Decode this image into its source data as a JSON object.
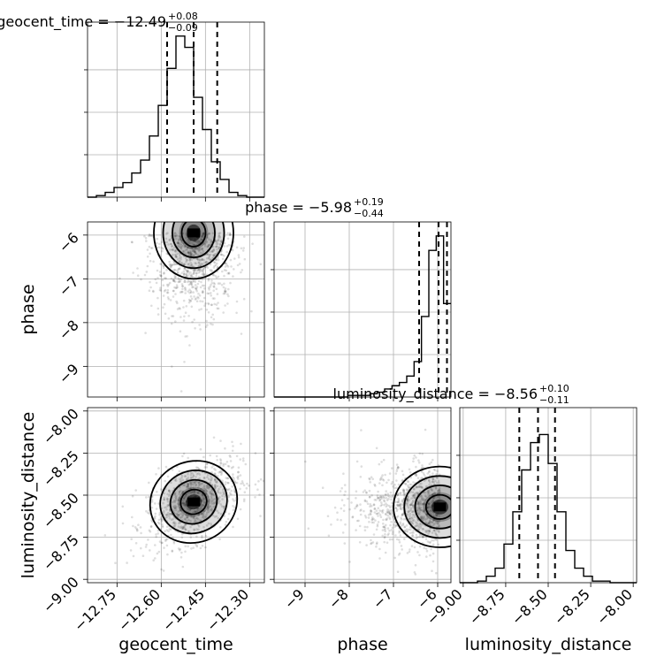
{
  "chart_data": {
    "type": "corner",
    "parameters": [
      "geocent_time",
      "phase",
      "luminosity_distance"
    ],
    "titles": [
      {
        "name": "geocent_time",
        "median": "−12.49",
        "plus": "+0.08",
        "minus": "−0.09"
      },
      {
        "name": "phase",
        "median": "−5.98",
        "plus": "+0.19",
        "minus": "−0.44"
      },
      {
        "name": "luminosity_distance",
        "median": "−8.56",
        "plus": "+0.10",
        "minus": "−0.11"
      }
    ],
    "axes": {
      "geocent_time": {
        "range": [
          -12.85,
          -12.25
        ],
        "ticks": [
          -12.75,
          -12.6,
          -12.45,
          -12.3
        ],
        "tick_labels": [
          "−12.75",
          "−12.60",
          "−12.45",
          "−12.30"
        ]
      },
      "phase": {
        "range": [
          -9.7,
          -5.7
        ],
        "ticks": [
          -9,
          -8,
          -7,
          -6
        ],
        "tick_labels": [
          "−9",
          "−8",
          "−7",
          "−6"
        ]
      },
      "luminosity_distance": {
        "range": [
          -9.02,
          -7.98
        ],
        "ticks": [
          -9.0,
          -8.75,
          -8.5,
          -8.25,
          -8.0
        ],
        "tick_labels": [
          "−9.00",
          "−8.75",
          "−8.50",
          "−8.25",
          "−8.00"
        ]
      }
    },
    "quantiles": {
      "geocent_time": [
        -12.58,
        -12.49,
        -12.41
      ],
      "phase": [
        -6.42,
        -5.98,
        -5.79
      ],
      "luminosity_distance": [
        -8.67,
        -8.56,
        -8.46
      ]
    },
    "histograms": {
      "geocent_time": [
        0.0,
        0.01,
        0.03,
        0.06,
        0.09,
        0.15,
        0.23,
        0.38,
        0.57,
        0.8,
        1.0,
        0.93,
        0.62,
        0.42,
        0.22,
        0.11,
        0.03,
        0.01,
        0.0,
        0.0
      ],
      "phase": [
        0.0,
        0.0,
        0.0,
        0.0,
        0.0,
        0.0,
        0.0,
        0.0,
        0.0,
        0.0,
        0.01,
        0.01,
        0.01,
        0.02,
        0.03,
        0.05,
        0.07,
        0.09,
        0.13,
        0.22,
        0.5,
        0.91,
        1.0,
        0.58
      ],
      "luminosity_distance": [
        0.0,
        0.0,
        0.01,
        0.04,
        0.09,
        0.24,
        0.44,
        0.7,
        0.87,
        0.92,
        0.74,
        0.44,
        0.2,
        0.09,
        0.04,
        0.01,
        0.01,
        0.0,
        0.0,
        0.0
      ]
    },
    "joint_peaks": {
      "geocent_time_vs_phase": {
        "x": -12.49,
        "y": -5.95
      },
      "geocent_time_vs_luminosity_distance": {
        "x": -12.49,
        "y": -8.54
      },
      "phase_vs_luminosity_distance": {
        "x": -5.95,
        "y": -8.57
      }
    },
    "grid": true,
    "legend": "none"
  }
}
